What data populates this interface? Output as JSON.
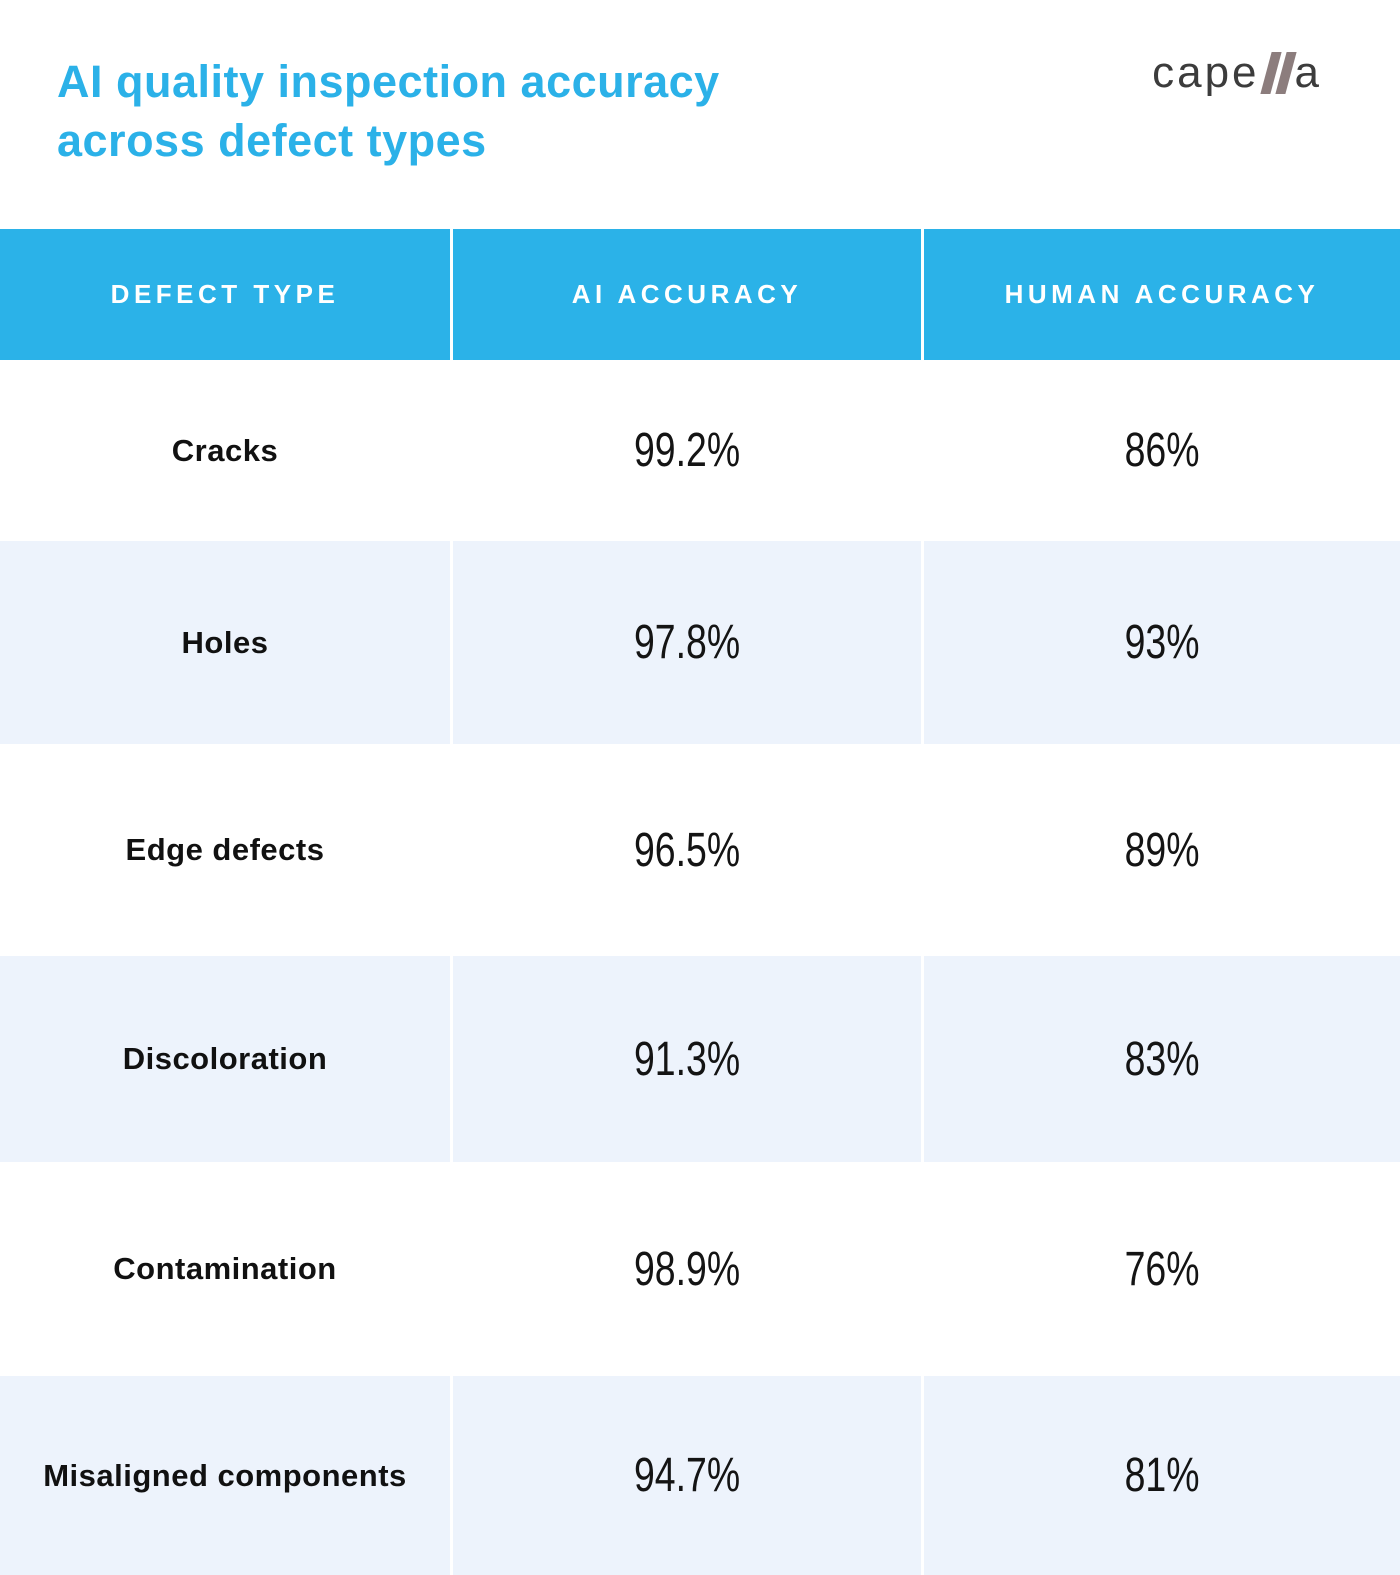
{
  "title": {
    "line1": "AI quality inspection accuracy",
    "line2": "across defect types"
  },
  "logo": {
    "name": "capella",
    "pre": "cape",
    "post": "a"
  },
  "colors": {
    "accent_blue": "#2bb2e8",
    "row_alt_blue": "#edf3fc",
    "text_dark": "#111111",
    "logo_slash_brown": "#8c7d7d",
    "header_text": "#ffffff"
  },
  "chart_data": {
    "type": "table",
    "title": "AI quality inspection accuracy across defect types",
    "columns": [
      "DEFECT TYPE",
      "AI ACCURACY",
      "HUMAN ACCURACY"
    ],
    "rows": [
      {
        "defect": "Cracks",
        "ai": "99.2%",
        "human": "86%"
      },
      {
        "defect": "Holes",
        "ai": "97.8%",
        "human": "93%"
      },
      {
        "defect": "Edge defects",
        "ai": "96.5%",
        "human": "89%"
      },
      {
        "defect": "Discoloration",
        "ai": "91.3%",
        "human": "83%"
      },
      {
        "defect": "Contamination",
        "ai": "98.9%",
        "human": "76%"
      },
      {
        "defect": "Misaligned components",
        "ai": "94.7%",
        "human": "81%"
      }
    ],
    "ai_values_numeric": [
      99.2,
      97.8,
      96.5,
      91.3,
      98.9,
      94.7
    ],
    "human_values_numeric": [
      86,
      93,
      89,
      83,
      76,
      81
    ],
    "layout": {
      "row_striping": "white / light-blue alternating",
      "header_style": "solid blue band"
    }
  }
}
